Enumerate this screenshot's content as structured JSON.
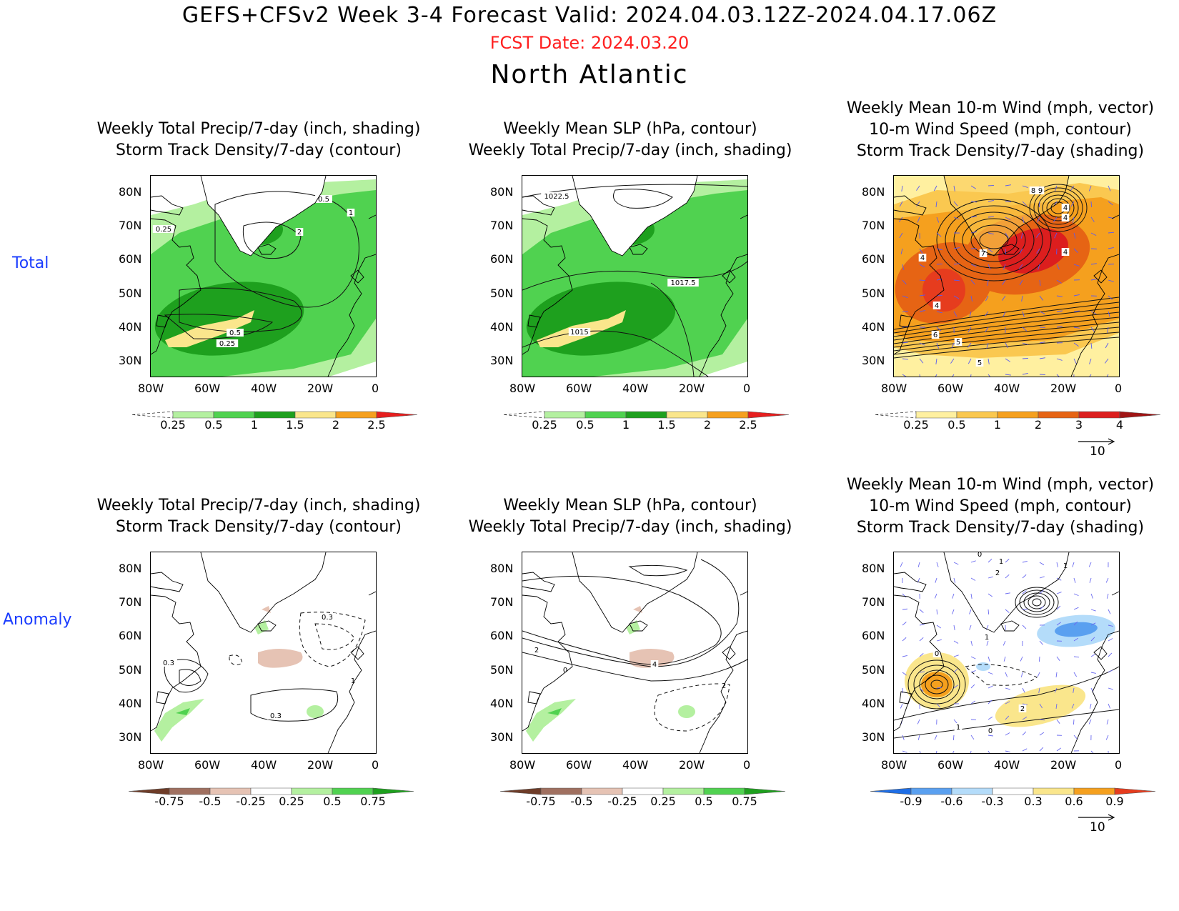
{
  "header": {
    "title": "GEFS+CFSv2 Week 3-4 Forecast      Valid: 2024.04.03.12Z-2024.04.17.06Z",
    "fcst_date": "FCST Date: 2024.03.20",
    "region": "North Atlantic"
  },
  "row_labels": {
    "total": "Total",
    "anomaly": "Anomaly"
  },
  "axes": {
    "lat_labels": [
      "80N",
      "70N",
      "60N",
      "50N",
      "40N",
      "30N"
    ],
    "lon_labels": [
      "80W",
      "60W",
      "40W",
      "20W",
      "0"
    ]
  },
  "panels": {
    "p1": {
      "title1": "Weekly Total Precip/7-day (inch, shading)",
      "title2": "Storm Track Density/7-day (contour)",
      "contour_labels": [
        "0.5",
        "1",
        "0.25",
        "2",
        "0.5",
        "0.25"
      ]
    },
    "p2": {
      "title1": "Weekly Mean SLP (hPa, contour)",
      "title2": "Weekly Total Precip/7-day (inch, shading)",
      "contour_labels": [
        "1022.5",
        "1017.5",
        "1015"
      ]
    },
    "p3": {
      "title1": "Weekly Mean 10-m Wind (mph, vector)",
      "title2": "10-m Wind Speed (mph, contour)",
      "title3": "Storm Track Density/7-day (shading)",
      "contour_labels": [
        "8",
        "9",
        "4",
        "4",
        "7",
        "4",
        "4",
        "4",
        "6",
        "5",
        "5"
      ]
    },
    "p4": {
      "title1": "Weekly Total Precip/7-day (inch, shading)",
      "title2": "Storm Track Density/7-day (contour)",
      "contour_labels": [
        "0.3",
        "0.3",
        "1",
        "0.3"
      ]
    },
    "p5": {
      "title1": "Weekly Mean SLP (hPa, contour)",
      "title2": "Weekly Total Precip/7-day (inch, shading)",
      "contour_labels": [
        "2",
        "0",
        "4",
        "2"
      ]
    },
    "p6": {
      "title1": "Weekly Mean 10-m Wind (mph, vector)",
      "title2": "10-m Wind Speed (mph, contour)",
      "title3": "Storm Track Density/7-day (shading)",
      "contour_labels": [
        "0",
        "1",
        "2",
        "1",
        "1",
        "0",
        "2",
        "1",
        "0"
      ]
    }
  },
  "colorbars": {
    "precip_total": {
      "labels": [
        "0.25",
        "0.5",
        "1",
        "1.5",
        "2",
        "2.5"
      ],
      "colors": [
        "#ffffff",
        "#b4f0a0",
        "#50d250",
        "#1ea01e",
        "#fae68c",
        "#f5a01e",
        "#e61e1e"
      ]
    },
    "track_total": {
      "labels": [
        "0.25",
        "0.5",
        "1",
        "2",
        "3",
        "4"
      ],
      "colors": [
        "#ffffff",
        "#fff0a0",
        "#fac850",
        "#f5a01e",
        "#e66414",
        "#dc1e1e",
        "#a01414"
      ]
    },
    "precip_anom": {
      "labels": [
        "-0.75",
        "-0.5",
        "-0.25",
        "0.25",
        "0.5",
        "0.75"
      ],
      "colors": [
        "#6e3c28",
        "#a07060",
        "#e6c3b4",
        "#ffffff",
        "#b4f0a0",
        "#50d250",
        "#1ea01e"
      ]
    },
    "track_anom": {
      "labels": [
        "-0.9",
        "-0.6",
        "-0.3",
        "0.3",
        "0.6",
        "0.9"
      ],
      "colors": [
        "#1e6ee6",
        "#5aa0f0",
        "#b4dcfa",
        "#ffffff",
        "#fae68c",
        "#f5a01e",
        "#e63c1e"
      ]
    }
  },
  "vector_ref": {
    "label": "10"
  }
}
